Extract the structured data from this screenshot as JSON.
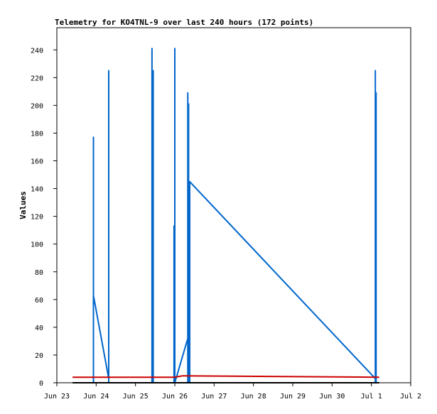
{
  "chart_data": {
    "type": "line",
    "title": "Telemetry for KO4TNL-9 over last 240 hours (172 points)",
    "xlabel": "",
    "ylabel": "Values",
    "x_tick_labels": [
      "Jun 23",
      "Jun 24",
      "Jun 25",
      "Jun 26",
      "Jun 27",
      "Jun 28",
      "Jun 29",
      "Jun 30",
      "Jul 1",
      "Jul 2"
    ],
    "x_range_days": [
      23,
      32
    ],
    "y_ticks": [
      0,
      20,
      40,
      60,
      80,
      100,
      120,
      140,
      160,
      180,
      200,
      220,
      240
    ],
    "ylim": [
      0,
      256
    ],
    "grid": false,
    "legend": "none",
    "series": [
      {
        "color": "#0066cc",
        "points": [
          [
            23.93,
            0
          ],
          [
            23.93,
            177
          ],
          [
            23.93,
            0
          ],
          [
            23.93,
            63
          ],
          [
            24.32,
            3
          ],
          [
            24.32,
            225
          ],
          [
            24.32,
            0
          ],
          [
            25.42,
            0
          ],
          [
            25.42,
            241
          ],
          [
            25.42,
            0
          ],
          [
            25.45,
            0
          ],
          [
            25.45,
            225
          ],
          [
            25.45,
            0
          ],
          [
            25.98,
            0
          ],
          [
            25.98,
            113
          ],
          [
            25.98,
            0
          ],
          [
            26.0,
            0
          ],
          [
            26.0,
            241
          ],
          [
            26.0,
            0
          ],
          [
            26.33,
            32
          ],
          [
            26.33,
            209
          ],
          [
            26.33,
            0
          ],
          [
            26.35,
            0
          ],
          [
            26.35,
            201
          ],
          [
            26.35,
            0
          ],
          [
            26.38,
            0
          ],
          [
            26.38,
            145
          ],
          [
            31.1,
            3
          ],
          [
            31.1,
            225
          ],
          [
            31.1,
            0
          ],
          [
            31.12,
            0
          ],
          [
            31.12,
            209
          ],
          [
            31.12,
            0
          ]
        ]
      },
      {
        "color": "#cc0000",
        "points": [
          [
            23.4,
            4
          ],
          [
            26.0,
            4
          ],
          [
            26.2,
            5
          ],
          [
            31.2,
            4
          ]
        ]
      },
      {
        "color": "#000000",
        "points": [
          [
            23.4,
            0
          ],
          [
            31.2,
            0
          ]
        ]
      }
    ]
  }
}
